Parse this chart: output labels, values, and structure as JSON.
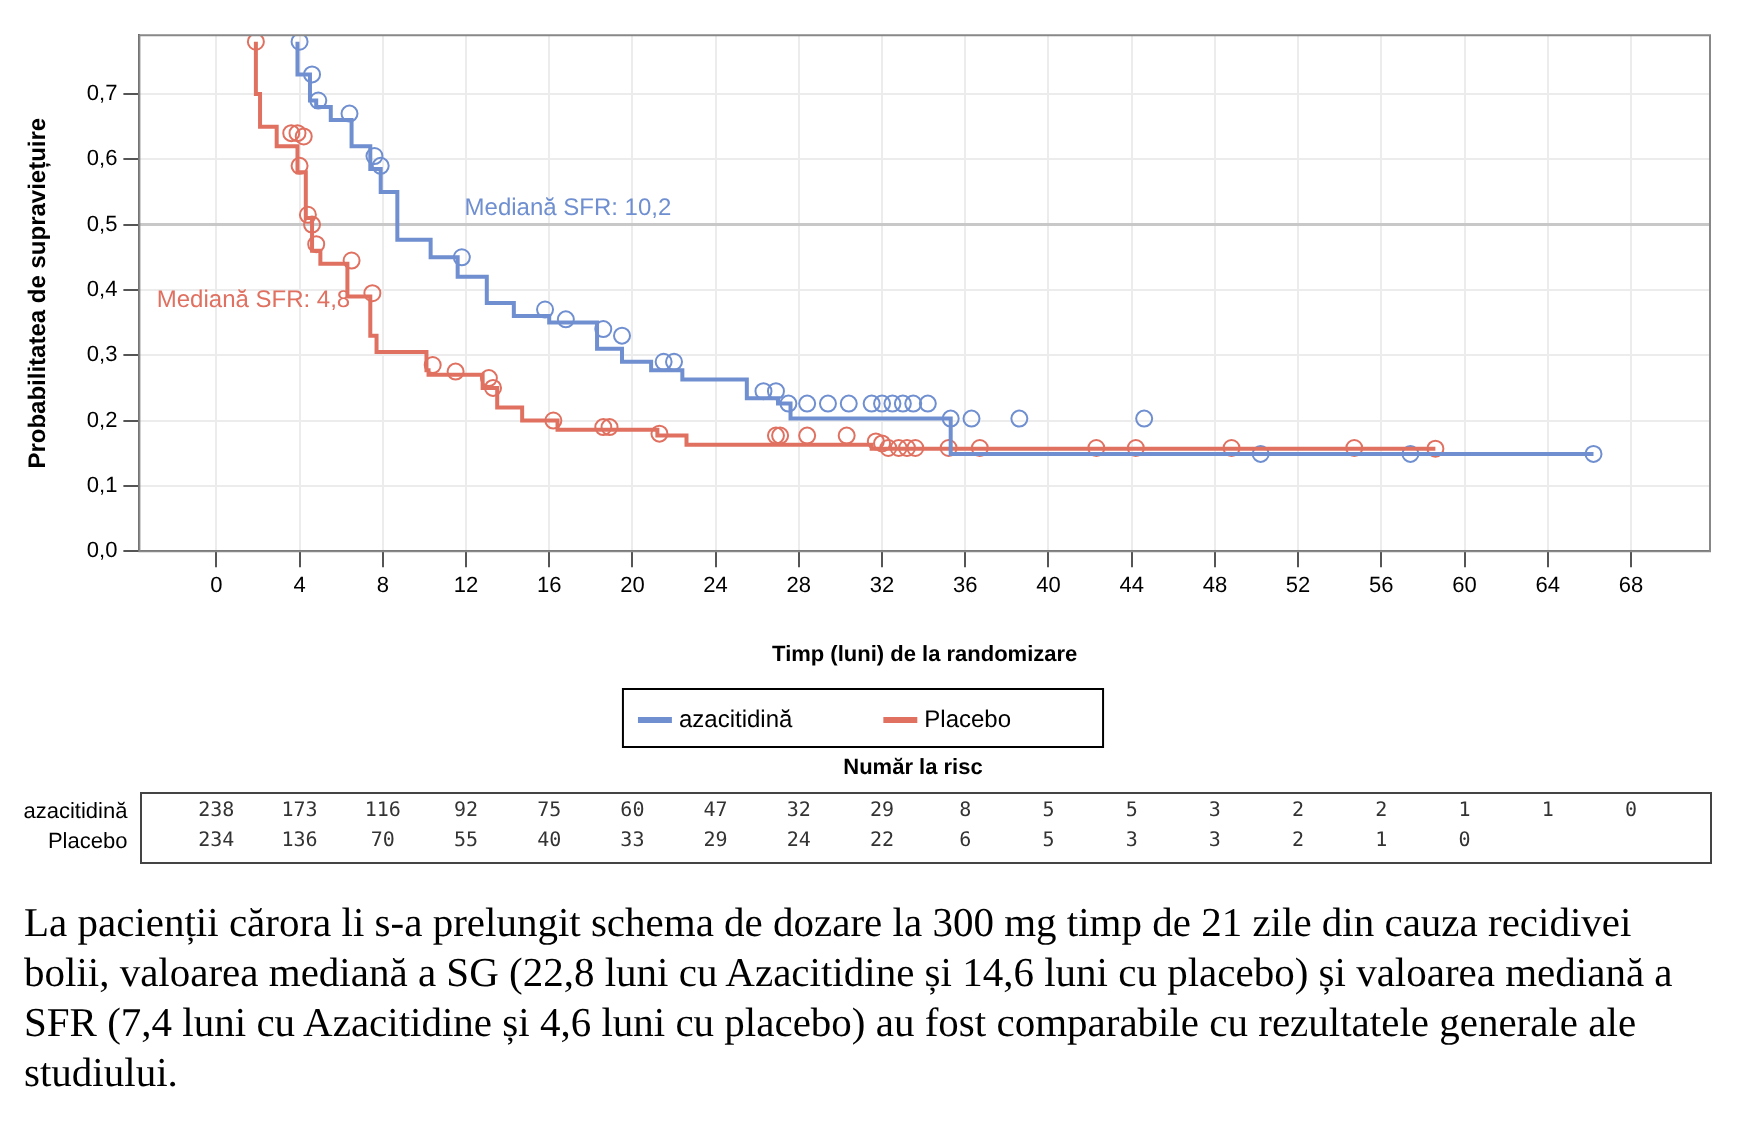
{
  "chart_data": {
    "type": "step",
    "xlabel": "Timp (luni) de la randomizare",
    "ylabel": "Probabilitatea de supraviețuire",
    "xlim": [
      -3.7,
      71.8
    ],
    "xticks": [
      0,
      4,
      8,
      12,
      16,
      20,
      24,
      28,
      32,
      36,
      40,
      44,
      48,
      52,
      56,
      60,
      64,
      68
    ],
    "ylim": [
      0,
      0.79
    ],
    "yticks": [
      {
        "value": 0,
        "label": "0,0"
      },
      {
        "value": 0.1,
        "label": "0,1"
      },
      {
        "value": 0.2,
        "label": "0,2"
      },
      {
        "value": 0.3,
        "label": "0,3"
      },
      {
        "value": 0.4,
        "label": "0,4"
      },
      {
        "value": 0.5,
        "label": "0,5"
      },
      {
        "value": 0.6,
        "label": "0,6"
      },
      {
        "value": 0.7,
        "label": "0,7"
      }
    ],
    "grid": true,
    "legend": "bottom",
    "ref_lines": [
      {
        "axis": "y",
        "value": 0.5,
        "color": "#c8c8c8"
      }
    ],
    "series": [
      {
        "name": "azacitidină",
        "type": "step",
        "color": "#6f8fd0",
        "x": [
          3.9,
          4.5,
          4.8,
          5.5,
          6.5,
          7.4,
          7.9,
          8.7,
          10.3,
          11.6,
          13,
          14.3,
          16,
          18.3,
          19.5,
          20.9,
          22.4,
          25.5,
          27,
          27.6,
          35.3,
          46.1,
          66.2
        ],
        "values": [
          0.78,
          0.73,
          0.69,
          0.68,
          0.66,
          0.62,
          0.585,
          0.55,
          0.477,
          0.45,
          0.42,
          0.38,
          0.36,
          0.35,
          0.31,
          0.29,
          0.277,
          0.263,
          0.234,
          0.226,
          0.203,
          0.149,
          0.149
        ]
      },
      {
        "name": "Placebo",
        "type": "step",
        "color": "#e07060",
        "x": [
          1.9,
          2.1,
          2.9,
          3.9,
          4.3,
          4.6,
          5.0,
          6.3,
          7.4,
          7.7,
          10.1,
          10.2,
          12.8,
          13.5,
          14.7,
          16.4,
          21.2,
          22.6,
          31.5,
          33,
          58.6
        ],
        "values": [
          0.78,
          0.7,
          0.65,
          0.62,
          0.58,
          0.51,
          0.46,
          0.44,
          0.39,
          0.33,
          0.305,
          0.277,
          0.27,
          0.25,
          0.22,
          0.2,
          0.186,
          0.177,
          0.163,
          0.157,
          0.157
        ]
      },
      {
        "type": "scatter",
        "marker": "circle",
        "color": "#6f8fd0",
        "x": [
          4.0,
          4.6,
          4.9,
          6.4,
          7.6,
          7.9,
          11.8,
          15.8,
          16.8,
          18.6,
          19.5,
          21.5,
          22,
          26.3,
          26.9,
          27.5,
          28.4,
          29.4,
          30.4,
          31.5,
          32,
          32.5,
          33,
          33.5,
          34.2,
          35.3,
          36.3,
          38.6,
          44.6,
          50.2,
          57.4,
          66.2
        ],
        "values": [
          0.78,
          0.73,
          0.69,
          0.67,
          0.605,
          0.59,
          0.45,
          0.37,
          0.355,
          0.34,
          0.33,
          0.29,
          0.29,
          0.245,
          0.245,
          0.226,
          0.226,
          0.226,
          0.226,
          0.226,
          0.226,
          0.226,
          0.226,
          0.226,
          0.226,
          0.203,
          0.203,
          0.203,
          0.203,
          0.149,
          0.149,
          0.149
        ]
      },
      {
        "type": "scatter",
        "marker": "circle",
        "color": "#e07060",
        "x": [
          1.9,
          3.6,
          3.9,
          4.2,
          4.0,
          4.4,
          4.6,
          4.8,
          6.5,
          7.5,
          10.4,
          11.5,
          13.1,
          13.3,
          16.2,
          18.6,
          18.9,
          21.3,
          26.9,
          27.1,
          28.4,
          30.3,
          31.7,
          32,
          32.3,
          32.8,
          33.2,
          33.6,
          35.2,
          36.7,
          42.3,
          44.2,
          48.8,
          54.7,
          58.6
        ],
        "values": [
          0.78,
          0.64,
          0.64,
          0.635,
          0.59,
          0.515,
          0.5,
          0.47,
          0.445,
          0.395,
          0.285,
          0.275,
          0.265,
          0.25,
          0.2,
          0.19,
          0.19,
          0.18,
          0.177,
          0.177,
          0.177,
          0.177,
          0.168,
          0.165,
          0.158,
          0.158,
          0.158,
          0.158,
          0.158,
          0.158,
          0.158,
          0.158,
          0.158,
          0.158,
          0.157
        ]
      }
    ],
    "annotations": [
      {
        "text": "Mediană SFR: 10,2",
        "x": 10.2,
        "y": 0.5
      },
      {
        "text": "Mediană SFR: 4,8",
        "x": 4.8,
        "y": 0.5
      },
      "Număr la risc",
      "238 173 116 92 75 60 47 32 29 8 5 5 3 2 2 1 1 0",
      "234 136 70 55 40 33 29 24 22 6 5 3 3 2 1 0",
      "La pacienții cărora li s-a prelungit schema de dozare la 300 mg timp de 21 zile din cauza recidivei bolii, valoarea mediană a SG (22,8 luni cu Azacitidine și 14,6 luni cu placebo) și valoarea mediană a SFR (7,4 luni cu Azacitidine și 4,6 luni cu placebo) au fost comparabile cu rezultatele generale ale studiului."
    ]
  }
}
